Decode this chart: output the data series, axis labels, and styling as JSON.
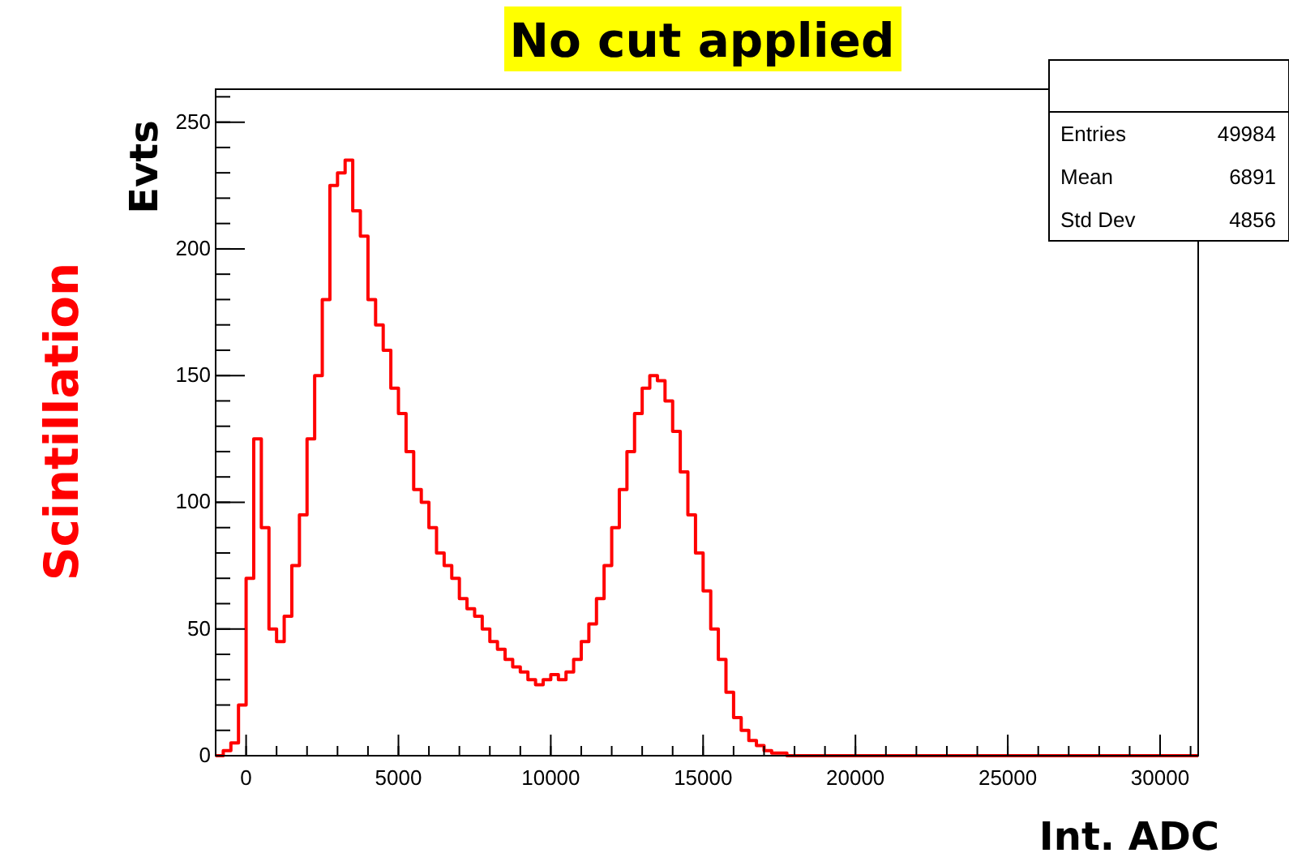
{
  "chart_data": {
    "type": "histogram",
    "title": "No cut applied",
    "xlabel": "Int. ADC",
    "ylabel": "Evts",
    "annotations": [
      "Scintillation",
      "Entries",
      "49984",
      "Mean",
      "6891",
      "Std Dev",
      "4856"
    ],
    "color": "#ff0000",
    "bins": [
      -1000,
      -750,
      -500,
      -250,
      0,
      250,
      500,
      750,
      1000,
      1250,
      1500,
      1750,
      2000,
      2250,
      2500,
      2750,
      3000,
      3250,
      3500,
      3750,
      4000,
      4250,
      4500,
      4750,
      5000,
      5250,
      5500,
      5750,
      6000,
      6250,
      6500,
      6750,
      7000,
      7250,
      7500,
      7750,
      8000,
      8250,
      8500,
      8750,
      9000,
      9250,
      9500,
      9750,
      10000,
      10250,
      10500,
      10750,
      11000,
      11250,
      11500,
      11750,
      12000,
      12250,
      12500,
      12750,
      13000,
      13250,
      13500,
      13750,
      14000,
      14250,
      14500,
      14750,
      15000,
      15250,
      15500,
      15750,
      16000,
      16250,
      16500,
      16750,
      17000,
      17250,
      17500,
      17750,
      31250
    ],
    "values": [
      0,
      2,
      5,
      20,
      70,
      125,
      90,
      50,
      45,
      55,
      75,
      95,
      125,
      150,
      180,
      225,
      230,
      235,
      215,
      205,
      180,
      170,
      160,
      145,
      135,
      120,
      105,
      100,
      90,
      80,
      75,
      70,
      62,
      58,
      55,
      50,
      45,
      42,
      38,
      35,
      33,
      30,
      28,
      30,
      32,
      30,
      33,
      38,
      45,
      52,
      62,
      75,
      90,
      105,
      120,
      135,
      145,
      150,
      148,
      140,
      128,
      112,
      95,
      80,
      65,
      50,
      38,
      25,
      15,
      10,
      6,
      4,
      2,
      1,
      1,
      0
    ],
    "xlim": [
      -1000,
      31250
    ],
    "ylim": [
      0,
      263
    ],
    "xticks": [
      0,
      5000,
      10000,
      15000,
      20000,
      25000,
      30000
    ],
    "yticks": [
      0,
      50,
      100,
      150,
      200,
      250
    ],
    "grid": false
  }
}
